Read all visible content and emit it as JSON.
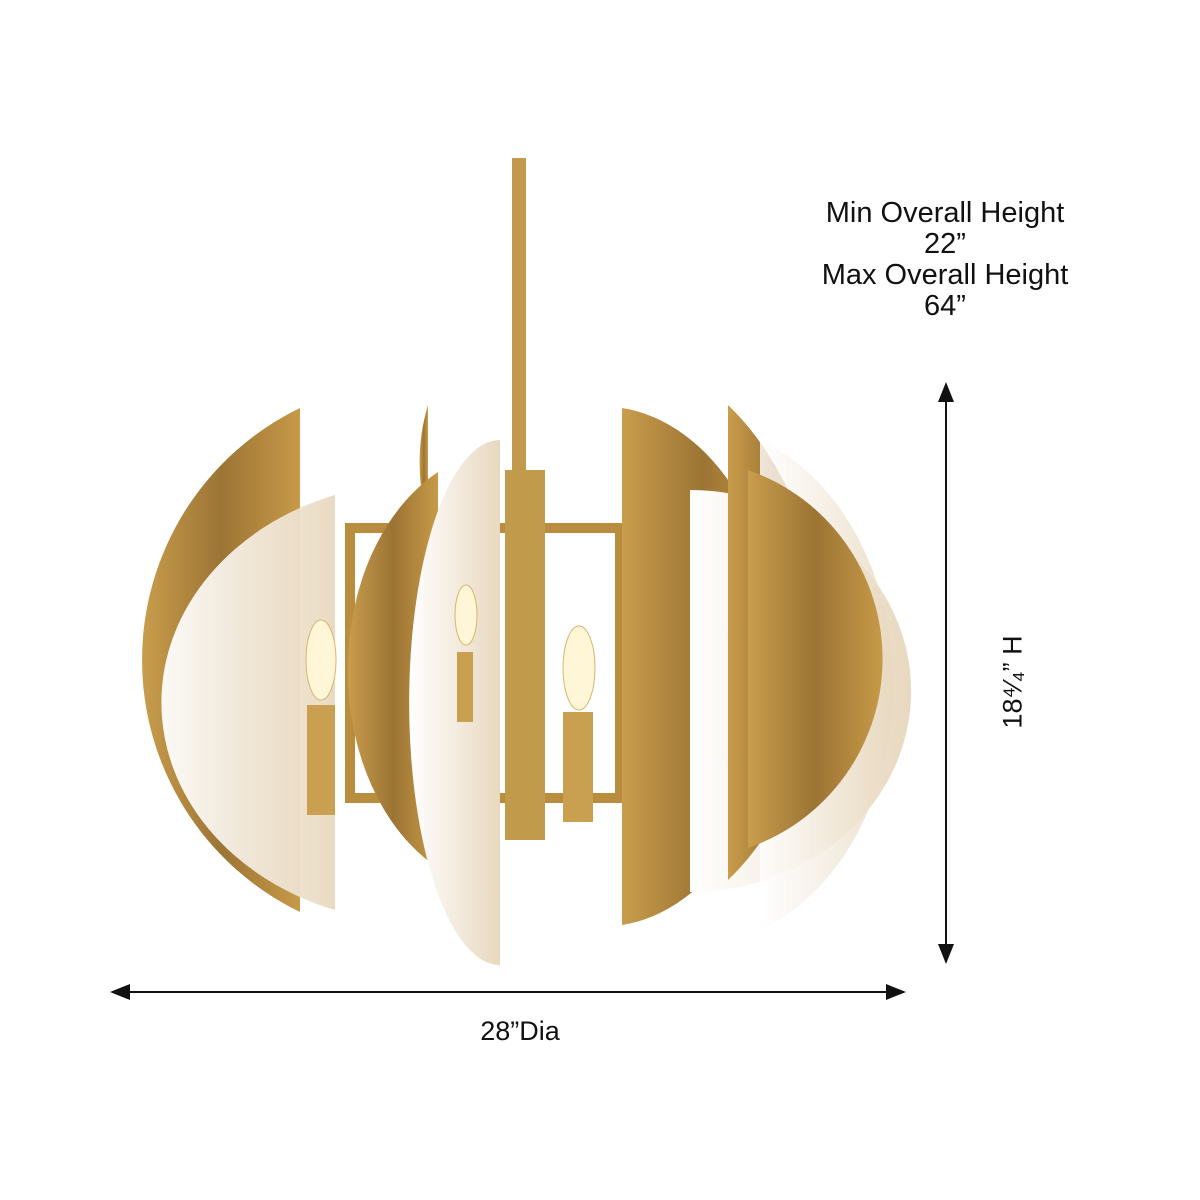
{
  "dimensions": {
    "min_height_label": "Min Overall Height",
    "min_height_value": "22”",
    "max_height_label": "Max Overall Height",
    "max_height_value": "64”",
    "height": "18⁴⁄₄” H",
    "diameter": "28”Dia"
  },
  "colors": {
    "brass": "#b88d3e",
    "alabaster": "#f2ece2",
    "text": "#111111"
  }
}
